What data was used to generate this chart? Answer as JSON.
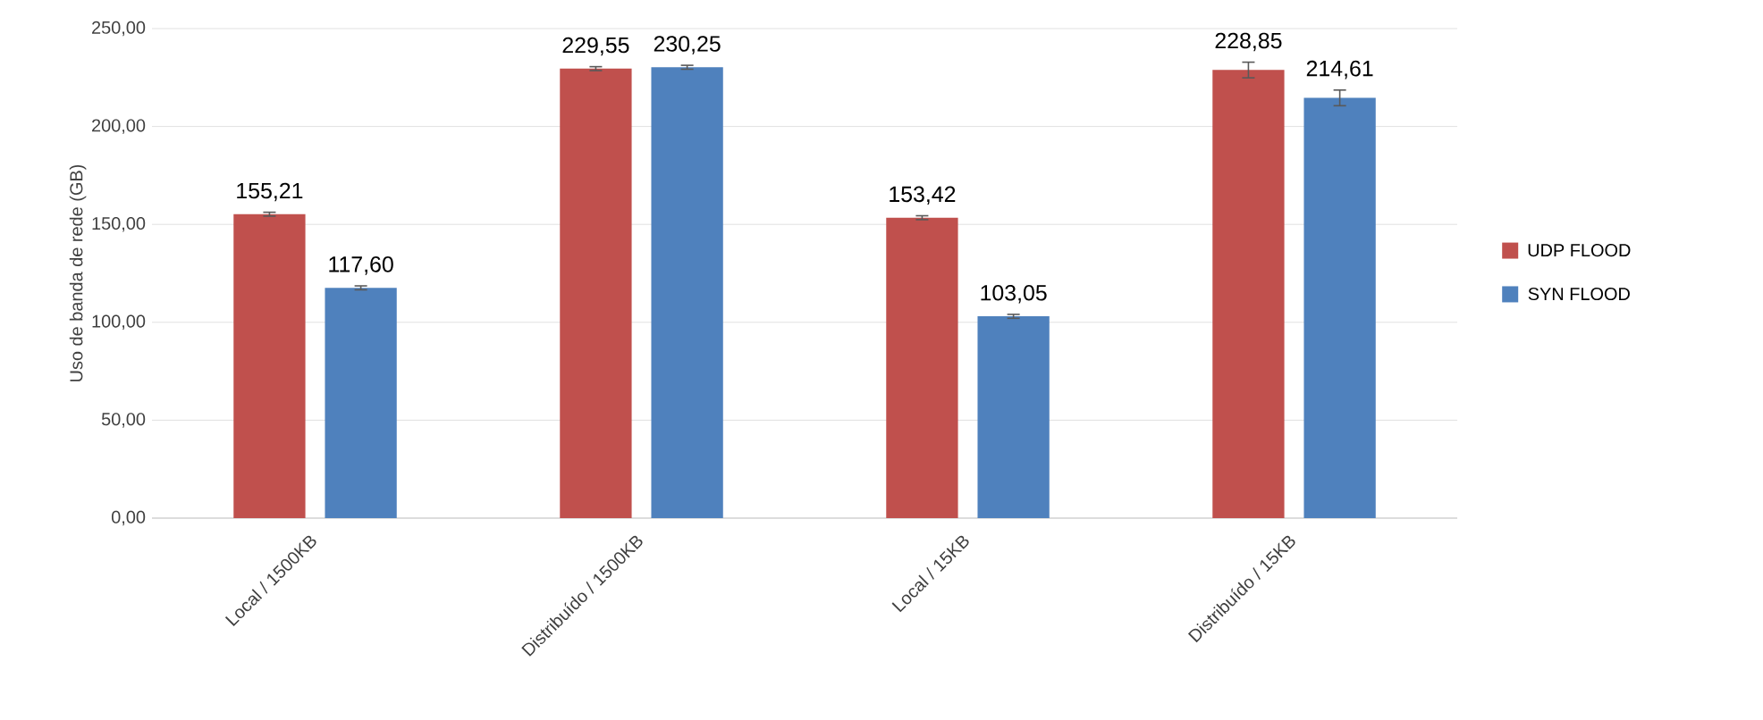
{
  "chart_data": {
    "type": "bar",
    "ylabel": "Uso de banda de rede (GB)",
    "categories": [
      "Local / 1500KB",
      "Distribuído / 1500KB",
      "Local / 15KB",
      "Distribuído / 15KB"
    ],
    "series": [
      {
        "name": "UDP FLOOD",
        "color": "#c0504d",
        "values": [
          155.21,
          229.55,
          153.42,
          228.85
        ],
        "errors": [
          1,
          1,
          1,
          4
        ],
        "value_labels": [
          "155,21",
          "229,55",
          "153,42",
          "228,85"
        ]
      },
      {
        "name": "SYN FLOOD",
        "color": "#4f81bd",
        "values": [
          117.6,
          230.25,
          103.05,
          214.61
        ],
        "errors": [
          1,
          1,
          1,
          4
        ],
        "value_labels": [
          "117,60",
          "230,25",
          "103,05",
          "214,61"
        ]
      }
    ],
    "ylim": [
      0,
      250
    ],
    "yticks": [
      {
        "value": 0,
        "label": "0,00"
      },
      {
        "value": 50,
        "label": "50,00"
      },
      {
        "value": 100,
        "label": "100,00"
      },
      {
        "value": 150,
        "label": "150,00"
      },
      {
        "value": 200,
        "label": "200,00"
      },
      {
        "value": 250,
        "label": "250,00"
      }
    ],
    "grid": "y",
    "legend": "right"
  }
}
